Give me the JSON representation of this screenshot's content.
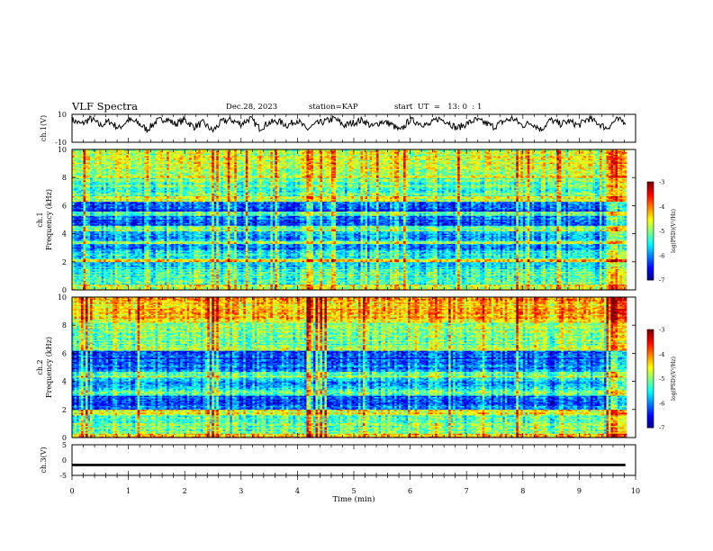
{
  "header": {
    "title": "VLF Spectra",
    "date": "Dec.28, 2023",
    "station": "station=KAP",
    "start": "start  UT  =   13: 0  : 1"
  },
  "chart_data": [
    {
      "type": "line",
      "ylabel": "ch.1(V)",
      "xlim": [
        0,
        10
      ],
      "ylim": [
        -10,
        10
      ],
      "yticks": [
        "10",
        "-10"
      ],
      "description_level": 5,
      "series": [
        {
          "color": "#000000",
          "values": [
            6,
            3,
            7,
            2,
            5,
            0,
            6,
            4,
            -1,
            5,
            7,
            3,
            6,
            1,
            4,
            -2,
            5,
            6,
            3,
            7,
            0,
            4,
            5,
            2,
            6,
            -1,
            3,
            5,
            7,
            2,
            4,
            6,
            1,
            5,
            3,
            -2,
            6,
            4,
            2,
            7,
            5,
            0,
            3,
            6,
            4,
            1,
            5,
            7,
            2,
            4,
            -1,
            6,
            3,
            5,
            2,
            7,
            4,
            0,
            6,
            5
          ]
        }
      ]
    },
    {
      "type": "heatmap",
      "ylabel_top": "ch.1",
      "ylabel": "Frequency (kHz)",
      "xlabel": "",
      "xlim": [
        0,
        10
      ],
      "ylim": [
        0,
        10
      ],
      "yticks": [
        "0",
        "2",
        "4",
        "6",
        "8",
        "10"
      ],
      "colorbar": {
        "label": "log(PSD)(V²/Hz)",
        "ticks": [
          "-3",
          "-4",
          "-5",
          "-6",
          "-7"
        ],
        "range": [
          -7,
          -3
        ]
      },
      "bands": [
        {
          "from": 0,
          "to": 0.4,
          "level": -4.6
        },
        {
          "from": 0.4,
          "to": 1.5,
          "level": -5.2
        },
        {
          "from": 1.5,
          "to": 2.0,
          "level": -5.6
        },
        {
          "from": 2.0,
          "to": 2.2,
          "level": -4.3
        },
        {
          "from": 2.2,
          "to": 2.8,
          "level": -5.4
        },
        {
          "from": 2.8,
          "to": 3.3,
          "level": -5.9
        },
        {
          "from": 3.3,
          "to": 3.5,
          "level": -4.8
        },
        {
          "from": 3.5,
          "to": 4.2,
          "level": -5.8
        },
        {
          "from": 4.2,
          "to": 4.6,
          "level": -5.1
        },
        {
          "from": 4.6,
          "to": 5.3,
          "level": -6.1
        },
        {
          "from": 5.3,
          "to": 5.6,
          "level": -5.0
        },
        {
          "from": 5.6,
          "to": 6.3,
          "level": -6.2
        },
        {
          "from": 6.3,
          "to": 6.7,
          "level": -4.6
        },
        {
          "from": 6.7,
          "to": 8.0,
          "level": -5.1
        },
        {
          "from": 8.0,
          "to": 10.0,
          "level": -4.7
        }
      ],
      "event_columns": [
        {
          "t": 4.22,
          "width": 0.1
        },
        {
          "t": 9.72,
          "width": 0.3
        }
      ]
    },
    {
      "type": "heatmap",
      "ylabel_top": "ch.2",
      "ylabel": "Frequency (kHz)",
      "xlabel": "",
      "xlim": [
        0,
        10
      ],
      "ylim": [
        0,
        10
      ],
      "yticks": [
        "0",
        "2",
        "4",
        "6",
        "8",
        "10"
      ],
      "colorbar": {
        "label": "log(PSD)(V²/Hz)",
        "ticks": [
          "-3",
          "-4",
          "-5",
          "-6",
          "-7"
        ],
        "range": [
          -7,
          -3
        ]
      },
      "bands": [
        {
          "from": 0,
          "to": 0.3,
          "level": -4.2
        },
        {
          "from": 0.3,
          "to": 1.6,
          "level": -5.1
        },
        {
          "from": 1.6,
          "to": 2.0,
          "level": -4.6
        },
        {
          "from": 2.0,
          "to": 3.0,
          "level": -6.1
        },
        {
          "from": 3.0,
          "to": 3.4,
          "level": -5.2
        },
        {
          "from": 3.4,
          "to": 4.3,
          "level": -5.8
        },
        {
          "from": 4.3,
          "to": 4.7,
          "level": -5.0
        },
        {
          "from": 4.7,
          "to": 5.6,
          "level": -6.0
        },
        {
          "from": 5.6,
          "to": 6.2,
          "level": -6.3
        },
        {
          "from": 6.2,
          "to": 6.7,
          "level": -5.0
        },
        {
          "from": 6.7,
          "to": 8.2,
          "level": -5.0
        },
        {
          "from": 8.2,
          "to": 10.0,
          "level": -4.3
        }
      ],
      "event_columns": [
        {
          "t": 4.22,
          "width": 0.1
        },
        {
          "t": 9.72,
          "width": 0.3
        }
      ]
    },
    {
      "type": "line",
      "ylabel": "ch.3(V)",
      "xlabel": "Time (min)",
      "xlim": [
        0,
        10
      ],
      "xticks": [
        "0",
        "1",
        "2",
        "3",
        "4",
        "5",
        "6",
        "7",
        "8",
        "9",
        "10"
      ],
      "ylim": [
        -5,
        5
      ],
      "yticks": [
        "5",
        "0",
        "-5"
      ],
      "series": [
        {
          "color": "#000000",
          "level": -1.6,
          "spread": 0.4,
          "end": 9.82
        }
      ]
    }
  ]
}
